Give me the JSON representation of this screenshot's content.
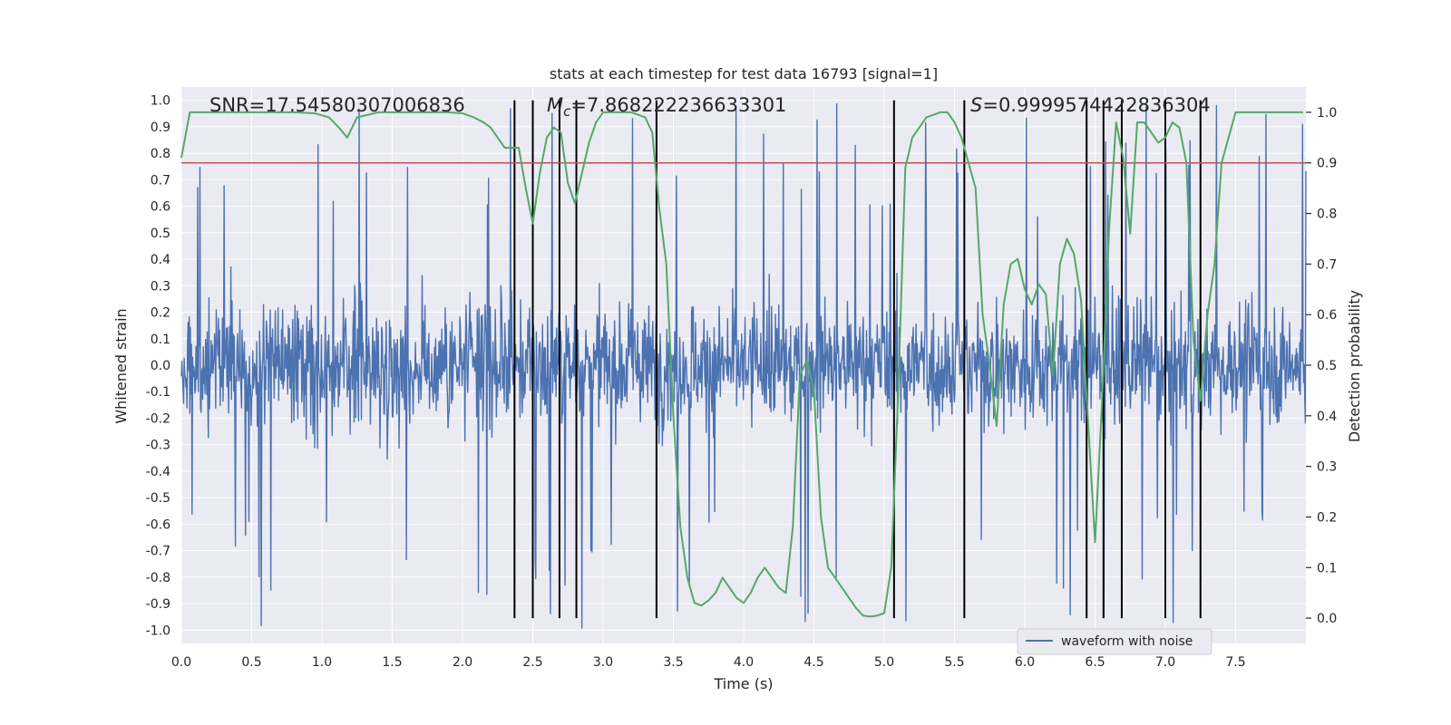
{
  "chart_data": {
    "type": "line",
    "title": "stats at each timestep for test data 16793 [signal=1]",
    "xlabel": "Time (s)",
    "ylabel": "Whitened strain",
    "ylabel_right": "Detection probability",
    "xlim": [
      0.0,
      8.0
    ],
    "ylim": [
      -1.05,
      1.05
    ],
    "ylim_right": [
      -0.05,
      1.05
    ],
    "x_ticks": [
      "0.0",
      "0.5",
      "1.0",
      "1.5",
      "2.0",
      "2.5",
      "3.0",
      "3.5",
      "4.0",
      "4.5",
      "5.0",
      "5.5",
      "6.0",
      "6.5",
      "7.0",
      "7.5"
    ],
    "x_tick_values": [
      0.0,
      0.5,
      1.0,
      1.5,
      2.0,
      2.5,
      3.0,
      3.5,
      4.0,
      4.5,
      5.0,
      5.5,
      6.0,
      6.5,
      7.0,
      7.5
    ],
    "y_ticks": [
      "1.0",
      "0.9",
      "0.8",
      "0.7",
      "0.6",
      "0.5",
      "0.4",
      "0.3",
      "0.2",
      "0.1",
      "0.0",
      "-0.1",
      "-0.2",
      "-0.3",
      "-0.4",
      "-0.5",
      "-0.6",
      "-0.7",
      "-0.8",
      "-0.9",
      "-1.0"
    ],
    "y_tick_values": [
      1.0,
      0.9,
      0.8,
      0.7,
      0.6,
      0.5,
      0.4,
      0.3,
      0.2,
      0.1,
      0.0,
      -0.1,
      -0.2,
      -0.3,
      -0.4,
      -0.5,
      -0.6,
      -0.7,
      -0.8,
      -0.9,
      -1.0
    ],
    "y2_ticks": [
      "1.0",
      "0.9",
      "0.8",
      "0.7",
      "0.6",
      "0.5",
      "0.4",
      "0.3",
      "0.2",
      "0.1",
      "0.0"
    ],
    "y2_tick_values": [
      1.0,
      0.9,
      0.8,
      0.7,
      0.6,
      0.5,
      0.4,
      0.3,
      0.2,
      0.1,
      0.0
    ],
    "annotations": {
      "snr": "SNR=17.54580307006836",
      "mc_symbol": "M",
      "mc_sub": "c",
      "mc_value": "=7.868222236633301",
      "s_symbol": "S",
      "s_value": "=0.9999574422836304"
    },
    "legend": {
      "label": "waveform with noise",
      "placement": "lower-right"
    },
    "threshold": {
      "axis": "right",
      "value": 0.9,
      "color": "#c44e52"
    },
    "event_lines": [
      2.37,
      2.5,
      2.69,
      2.81,
      3.38,
      5.07,
      5.57,
      6.44,
      6.56,
      6.69,
      7.0,
      7.25
    ],
    "waveform": {
      "name": "waveform with noise",
      "color": "#4c72b0",
      "seed": 16793,
      "samples": 2000,
      "noise_amplitude": 0.42,
      "peak_max": 1.0,
      "trough_min": -1.0
    },
    "detection_probability": {
      "name": "Detection probability",
      "color": "#55a868",
      "axis": "right",
      "x": [
        0.0,
        0.06,
        0.2,
        0.5,
        0.8,
        0.95,
        1.05,
        1.12,
        1.18,
        1.25,
        1.4,
        1.7,
        1.9,
        2.0,
        2.08,
        2.15,
        2.2,
        2.25,
        2.3,
        2.35,
        2.4,
        2.45,
        2.5,
        2.55,
        2.6,
        2.65,
        2.7,
        2.75,
        2.8,
        2.85,
        2.9,
        2.95,
        3.0,
        3.1,
        3.2,
        3.3,
        3.35,
        3.4,
        3.45,
        3.5,
        3.55,
        3.6,
        3.65,
        3.7,
        3.75,
        3.8,
        3.85,
        3.9,
        3.95,
        4.0,
        4.05,
        4.1,
        4.15,
        4.2,
        4.25,
        4.3,
        4.35,
        4.4,
        4.45,
        4.5,
        4.55,
        4.6,
        4.65,
        4.7,
        4.75,
        4.8,
        4.85,
        4.9,
        4.95,
        5.0,
        5.05,
        5.1,
        5.15,
        5.2,
        5.3,
        5.4,
        5.45,
        5.5,
        5.55,
        5.6,
        5.65,
        5.7,
        5.75,
        5.8,
        5.85,
        5.9,
        5.95,
        6.0,
        6.05,
        6.1,
        6.15,
        6.2,
        6.25,
        6.3,
        6.35,
        6.4,
        6.45,
        6.5,
        6.55,
        6.6,
        6.65,
        6.7,
        6.75,
        6.8,
        6.85,
        6.9,
        6.95,
        7.0,
        7.05,
        7.1,
        7.15,
        7.2,
        7.25,
        7.3,
        7.35,
        7.4,
        7.5,
        7.7,
        7.9,
        7.98
      ],
      "y": [
        0.91,
        1.0,
        1.0,
        1.0,
        1.0,
        0.998,
        0.99,
        0.97,
        0.95,
        0.99,
        1.0,
        1.0,
        1.0,
        0.998,
        0.99,
        0.98,
        0.97,
        0.95,
        0.93,
        0.93,
        0.93,
        0.85,
        0.78,
        0.88,
        0.95,
        0.97,
        0.96,
        0.86,
        0.82,
        0.88,
        0.94,
        0.98,
        1.0,
        1.0,
        1.0,
        0.99,
        0.96,
        0.81,
        0.7,
        0.4,
        0.18,
        0.08,
        0.03,
        0.025,
        0.035,
        0.05,
        0.08,
        0.06,
        0.04,
        0.03,
        0.05,
        0.08,
        0.1,
        0.08,
        0.06,
        0.05,
        0.18,
        0.48,
        0.51,
        0.45,
        0.2,
        0.1,
        0.08,
        0.06,
        0.04,
        0.02,
        0.005,
        0.003,
        0.005,
        0.01,
        0.1,
        0.45,
        0.89,
        0.95,
        0.99,
        1.0,
        1.0,
        0.98,
        0.95,
        0.9,
        0.85,
        0.6,
        0.5,
        0.38,
        0.62,
        0.7,
        0.71,
        0.65,
        0.62,
        0.66,
        0.64,
        0.48,
        0.7,
        0.75,
        0.72,
        0.63,
        0.39,
        0.15,
        0.43,
        0.77,
        0.98,
        0.91,
        0.76,
        0.98,
        0.98,
        0.96,
        0.94,
        0.95,
        0.98,
        0.97,
        0.9,
        0.55,
        0.43,
        0.6,
        0.7,
        0.9,
        1.0,
        1.0,
        1.0,
        1.0
      ]
    }
  }
}
